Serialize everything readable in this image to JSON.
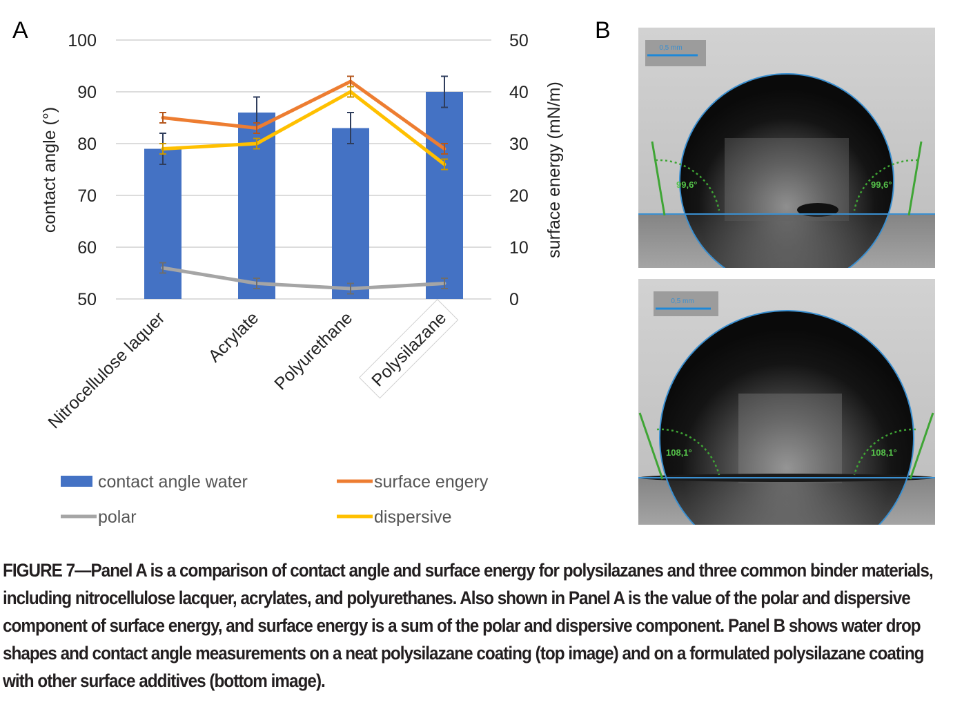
{
  "panel_a_label": "A",
  "panel_b_label": "B",
  "chart_data": {
    "type": "bar",
    "categories": [
      "Nitrocellulose laquer",
      "Acrylate",
      "Polyurethane",
      "Polysilazane"
    ],
    "y_left_label": "contact angle (°)",
    "y_left_range": [
      50,
      100
    ],
    "y_left_ticks": [
      "50",
      "60",
      "70",
      "80",
      "90",
      "100"
    ],
    "y_right_label": "surface energy (mN/m)",
    "y_right_range": [
      0,
      50
    ],
    "y_right_ticks": [
      "0",
      "10",
      "20",
      "30",
      "40",
      "50"
    ],
    "grid": true,
    "legend_position": "bottom",
    "bars": {
      "name": "contact angle water",
      "axis": "left",
      "color": "#4472c4",
      "values": [
        79,
        86,
        83,
        90
      ],
      "errors": [
        3,
        3,
        3,
        3
      ]
    },
    "lines": [
      {
        "name": "surface engery",
        "axis": "right",
        "color": "#ed7d31",
        "values": [
          35,
          33,
          42,
          29
        ],
        "errors": [
          1,
          1,
          1,
          1
        ]
      },
      {
        "name": "polar",
        "axis": "right",
        "color": "#a5a5a5",
        "values": [
          6,
          3,
          2,
          3
        ],
        "errors": [
          1,
          1,
          1,
          1
        ]
      },
      {
        "name": "dispersive",
        "axis": "right",
        "color": "#ffc000",
        "values": [
          29,
          30,
          40,
          26
        ],
        "errors": [
          1,
          1,
          1,
          1
        ]
      }
    ]
  },
  "images": [
    {
      "scale_label": "0,5 mm",
      "angle_left": "99,6°",
      "angle_right": "99,6°"
    },
    {
      "scale_label": "0,5 mm",
      "angle_left": "108,1°",
      "angle_right": "108,1°"
    }
  ],
  "caption": "FIGURE 7—Panel A is a comparison of contact angle and surface energy for polysilazanes and three common binder materials, including nitrocellulose lacquer, acrylates, and polyurethanes. Also shown in Panel A is the value of the polar and dispersive component of surface energy, and surface energy is a sum of the polar and dispersive component. Panel B shows water drop shapes and contact angle measurements on a neat polysilazane coating (top image) and on a formulated polysilazane coating with other surface additives (bottom image)."
}
